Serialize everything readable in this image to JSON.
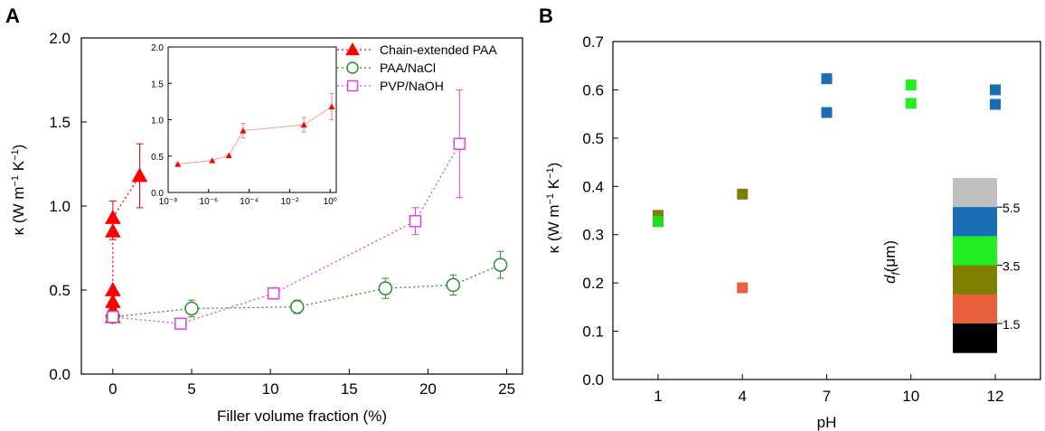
{
  "chart_data": [
    {
      "panel": "A",
      "type": "scatter",
      "xlabel": "Filler volume fraction (%)",
      "ylabel": "κ (W m⁻¹ K⁻¹)",
      "xlim": [
        -2,
        26
      ],
      "ylim": [
        0,
        2.0
      ],
      "xticks": [
        0,
        5,
        10,
        15,
        20,
        25
      ],
      "yticks": [
        0.0,
        0.5,
        1.0,
        1.5,
        2.0
      ],
      "xtick_labels": [
        "0",
        "5",
        "10",
        "15",
        "20",
        "25"
      ],
      "ytick_labels": [
        "0.0",
        "0.5",
        "1.0",
        "1.5",
        "2.0"
      ],
      "legend_position": "top-right",
      "series": [
        {
          "name": "Chain-extended PAA",
          "color": "#ff0000",
          "marker": "filled-triangle",
          "line": "dotted",
          "points": [
            {
              "x": 0.0,
              "y": 0.34,
              "err": 0
            },
            {
              "x": 0.0,
              "y": 0.38,
              "err": 0
            },
            {
              "x": 0.0,
              "y": 0.43,
              "err": 0
            },
            {
              "x": 0.0,
              "y": 0.5,
              "err": 0
            },
            {
              "x": 0.0,
              "y": 0.85,
              "err": 0.05
            },
            {
              "x": 0.0,
              "y": 0.93,
              "err": 0.1
            },
            {
              "x": 1.7,
              "y": 1.18,
              "err": 0.19
            }
          ]
        },
        {
          "name": "PAA/NaCl",
          "color": "#2e8b2e",
          "marker": "open-circle",
          "line": "dotted",
          "points": [
            {
              "x": 0.0,
              "y": 0.34,
              "err": 0.03
            },
            {
              "x": 5.0,
              "y": 0.39,
              "err": 0.05
            },
            {
              "x": 11.7,
              "y": 0.4,
              "err": 0.04
            },
            {
              "x": 17.3,
              "y": 0.51,
              "err": 0.06
            },
            {
              "x": 21.6,
              "y": 0.53,
              "err": 0.06
            },
            {
              "x": 24.6,
              "y": 0.65,
              "err": 0.08
            }
          ]
        },
        {
          "name": "PVP/NaOH",
          "color": "#e040e0",
          "marker": "open-square",
          "line": "dotted",
          "points": [
            {
              "x": 0.0,
              "y": 0.34,
              "err": 0.03
            },
            {
              "x": 4.3,
              "y": 0.3,
              "err": 0
            },
            {
              "x": 10.2,
              "y": 0.48,
              "err": 0.03
            },
            {
              "x": 19.2,
              "y": 0.91,
              "err": 0.08
            },
            {
              "x": 22.0,
              "y": 1.37,
              "err": 0.32
            }
          ]
        }
      ],
      "inset": {
        "type": "line",
        "xscale": "log",
        "xlim": [
          1e-08,
          2
        ],
        "ylim": [
          0,
          2.0
        ],
        "xtick_labels": [
          "10⁻⁸",
          "10⁻⁶",
          "10⁻⁴",
          "10⁻²",
          "10⁰"
        ],
        "ytick_labels": [
          "0.0",
          "0.5",
          "1.0",
          "1.5",
          "2.0"
        ],
        "series": [
          {
            "name": "Chain-extended PAA",
            "color": "#ff0000",
            "points": [
              {
                "x": 3e-08,
                "y": 0.39,
                "err": 0
              },
              {
                "x": 1.5e-06,
                "y": 0.44,
                "err": 0
              },
              {
                "x": 1e-05,
                "y": 0.51,
                "err": 0
              },
              {
                "x": 5e-05,
                "y": 0.85,
                "err": 0.1
              },
              {
                "x": 0.05,
                "y": 0.93,
                "err": 0.1
              },
              {
                "x": 1.2,
                "y": 1.18,
                "err": 0.18
              }
            ]
          }
        ]
      }
    },
    {
      "panel": "B",
      "type": "scatter",
      "xlabel": "pH",
      "ylabel": "κ (W m⁻¹ K⁻¹)",
      "categories": [
        "1",
        "4",
        "7",
        "10",
        "12"
      ],
      "ylim": [
        0,
        0.7
      ],
      "yticks": [
        0.0,
        0.1,
        0.2,
        0.3,
        0.4,
        0.5,
        0.6,
        0.7
      ],
      "ytick_labels": [
        "0.0",
        "0.1",
        "0.2",
        "0.3",
        "0.4",
        "0.5",
        "0.6",
        "0.7"
      ],
      "points": [
        {
          "category": "1",
          "y": 0.34,
          "color": "#808000"
        },
        {
          "category": "1",
          "y": 0.327,
          "color": "#22dd22"
        },
        {
          "category": "4",
          "y": 0.384,
          "color": "#808000"
        },
        {
          "category": "4",
          "y": 0.19,
          "color": "#e8603c"
        },
        {
          "category": "7",
          "y": 0.623,
          "color": "#1a6eb5"
        },
        {
          "category": "7",
          "y": 0.553,
          "color": "#1a6eb5"
        },
        {
          "category": "10",
          "y": 0.61,
          "color": "#22ee22"
        },
        {
          "category": "10",
          "y": 0.572,
          "color": "#22ee22"
        },
        {
          "category": "12",
          "y": 0.6,
          "color": "#1a6eb5"
        },
        {
          "category": "12",
          "y": 0.57,
          "color": "#1a6eb5"
        }
      ],
      "colorbar": {
        "label_var": "d",
        "label_sub": "f",
        "label_unit": "(μm)",
        "colors": [
          "#c0c0c0",
          "#1a6eb5",
          "#22ee22",
          "#808000",
          "#e8603c",
          "#000000"
        ],
        "tick_labels": [
          "5.5",
          "3.5",
          "1.5"
        ]
      }
    }
  ]
}
